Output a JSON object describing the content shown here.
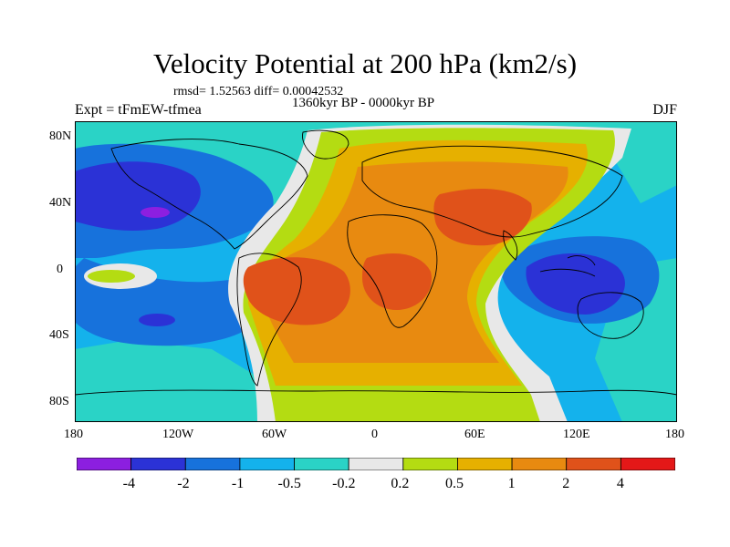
{
  "title": "Velocity Potential at 200 hPa (km2/s)",
  "stats": "rmsd= 1.52563 diff= 0.00042532",
  "period": "1360kyr BP - 0000kyr BP",
  "experiment": "Expt = tFmEW-tfmea",
  "season": "DJF",
  "y_axis": {
    "labels": [
      "80N",
      "40N",
      "0",
      "40S",
      "80S"
    ]
  },
  "x_axis": {
    "labels": [
      "180",
      "120W",
      "60W",
      "0",
      "60E",
      "120E",
      "180"
    ]
  },
  "colorbar": {
    "colors": [
      "#8c1fe0",
      "#2b32d6",
      "#1772dc",
      "#14b2ec",
      "#2ad3c6",
      "#e8e8e8",
      "#b4dc12",
      "#e6b000",
      "#e88a10",
      "#e0521a",
      "#e41818"
    ],
    "labels": [
      "-4",
      "-2",
      "-1",
      "-0.5",
      "-0.2",
      "0.2",
      "0.5",
      "1",
      "2",
      "4"
    ]
  }
}
